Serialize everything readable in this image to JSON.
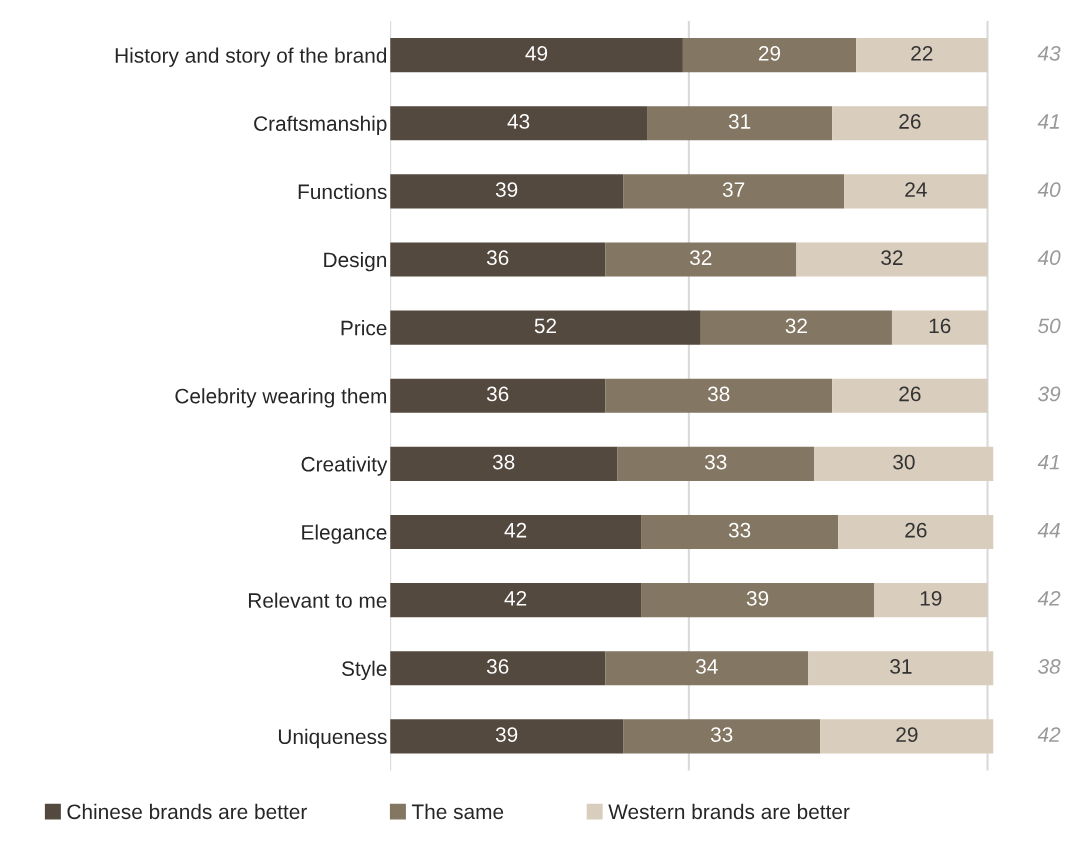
{
  "chart_data": {
    "type": "bar",
    "orientation": "horizontal",
    "stacked": true,
    "categories": [
      "History and story of the brand",
      "Craftsmanship",
      "Functions",
      "Design",
      "Price",
      "Celebrity wearing them",
      "Creativity",
      "Elegance",
      "Relevant to me",
      "Style",
      "Uniqueness"
    ],
    "series": [
      {
        "name": "Chinese brands are better",
        "color": "#54493f",
        "values": [
          49,
          43,
          39,
          36,
          52,
          36,
          38,
          42,
          42,
          36,
          39
        ]
      },
      {
        "name": "The same",
        "color": "#837662",
        "values": [
          29,
          31,
          37,
          32,
          32,
          38,
          33,
          33,
          39,
          34,
          33
        ]
      },
      {
        "name": "Western brands are better",
        "color": "#d9cdbd",
        "values": [
          22,
          26,
          24,
          32,
          16,
          26,
          30,
          26,
          19,
          31,
          29
        ]
      }
    ],
    "data_labels": true,
    "xlim": [
      0,
      101
    ],
    "ref_lines": [
      {
        "axis": "x",
        "value": 0,
        "color": "#d9d9d9"
      },
      {
        "axis": "x",
        "value": 50,
        "color": "#d9d9d9"
      },
      {
        "axis": "x",
        "value": 100,
        "color": "#d9d9d9"
      }
    ],
    "tick_labels": "y",
    "legend": "bottom",
    "annotations": [
      "43",
      "41",
      "40",
      "40",
      "50",
      "39",
      "41",
      "44",
      "42",
      "38",
      "42"
    ]
  }
}
